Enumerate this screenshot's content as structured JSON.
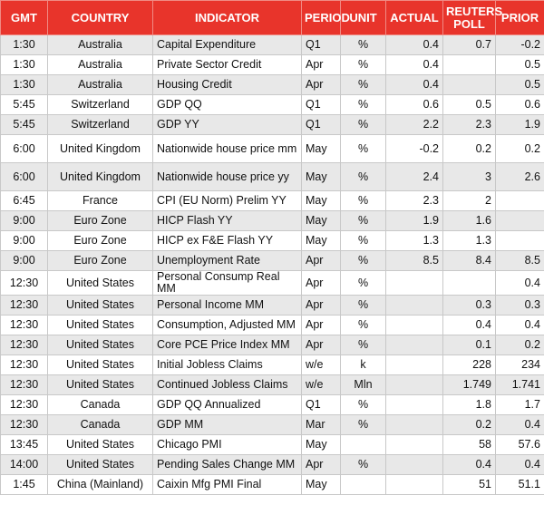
{
  "table": {
    "header": [
      "GMT",
      "COUNTRY",
      "INDICATOR",
      "PERIOD",
      "UNIT",
      "ACTUAL",
      "REUTERS POLL",
      "PRIOR"
    ],
    "rows": [
      [
        "1:30",
        "Australia",
        "Capital Expenditure",
        "Q1",
        "%",
        0.4,
        0.7,
        -0.2
      ],
      [
        "1:30",
        "Australia",
        "Private Sector Credit",
        "Apr",
        "%",
        0.4,
        null,
        0.5
      ],
      [
        "1:30",
        "Australia",
        "Housing Credit",
        "Apr",
        "%",
        0.4,
        null,
        0.5
      ],
      [
        "5:45",
        "Switzerland",
        "GDP QQ",
        "Q1",
        "%",
        0.6,
        0.5,
        0.6
      ],
      [
        "5:45",
        "Switzerland",
        "GDP YY",
        "Q1",
        "%",
        2.2,
        2.3,
        1.9
      ],
      [
        "6:00",
        "United Kingdom",
        "Nationwide house price mm",
        "May",
        "%",
        -0.2,
        0.2,
        0.2
      ],
      [
        "6:00",
        "United Kingdom",
        "Nationwide house price yy",
        "May",
        "%",
        2.4,
        3,
        2.6
      ],
      [
        "6:45",
        "France",
        "CPI (EU Norm) Prelim YY",
        "May",
        "%",
        2.3,
        2,
        null
      ],
      [
        "9:00",
        "Euro Zone",
        "HICP Flash YY",
        "May",
        "%",
        1.9,
        1.6,
        null
      ],
      [
        "9:00",
        "Euro Zone",
        "HICP ex F&E Flash YY",
        "May",
        "%",
        1.3,
        1.3,
        null
      ],
      [
        "9:00",
        "Euro Zone",
        "Unemployment Rate",
        "Apr",
        "%",
        8.5,
        8.4,
        8.5
      ],
      [
        "12:30",
        "United States",
        "Personal Consump Real MM",
        "Apr",
        "%",
        null,
        null,
        0.4
      ],
      [
        "12:30",
        "United States",
        "Personal Income MM",
        "Apr",
        "%",
        null,
        0.3,
        0.3
      ],
      [
        "12:30",
        "United States",
        "Consumption, Adjusted MM",
        "Apr",
        "%",
        null,
        0.4,
        0.4
      ],
      [
        "12:30",
        "United States",
        "Core PCE Price Index MM",
        "Apr",
        "%",
        null,
        0.1,
        0.2
      ],
      [
        "12:30",
        "United States",
        "Initial Jobless Claims",
        "w/e",
        "k",
        null,
        228,
        234
      ],
      [
        "12:30",
        "United States",
        "Continued Jobless Claims",
        "w/e",
        "Mln",
        null,
        1.749,
        1.741
      ],
      [
        "12:30",
        "Canada",
        "GDP QQ Annualized",
        "Q1",
        "%",
        null,
        1.8,
        1.7
      ],
      [
        "12:30",
        "Canada",
        "GDP MM",
        "Mar",
        "%",
        null,
        0.2,
        0.4
      ],
      [
        "13:45",
        "United States",
        "Chicago PMI",
        "May",
        null,
        null,
        58,
        57.6
      ],
      [
        "14:00",
        "United States",
        "Pending Sales Change MM",
        "Apr",
        "%",
        null,
        0.4,
        0.4
      ],
      [
        "1:45",
        "China (Mainland)",
        "Caixin Mfg PMI Final",
        "May",
        null,
        null,
        51,
        51.1
      ]
    ]
  }
}
